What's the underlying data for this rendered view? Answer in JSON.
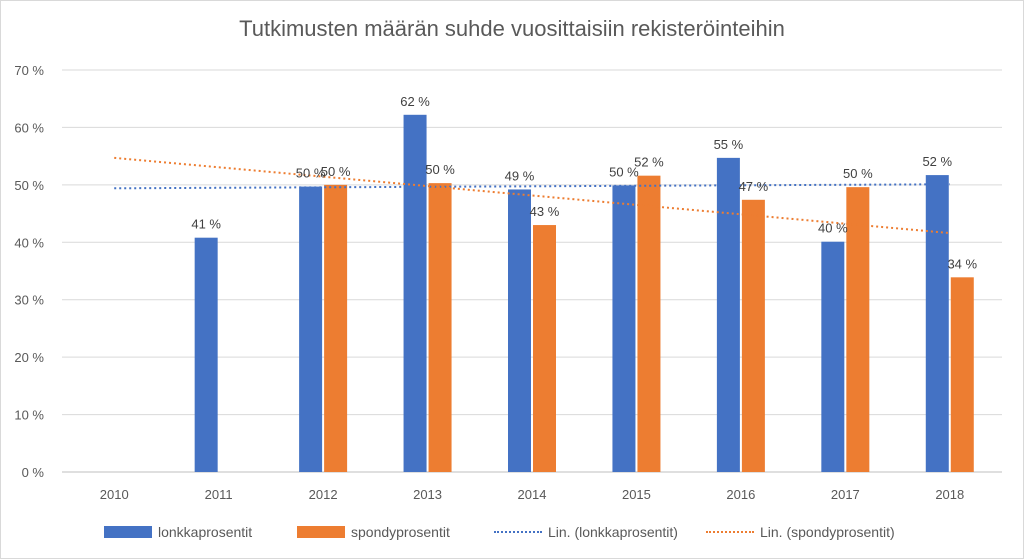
{
  "chart_data": {
    "type": "bar",
    "title": "Tutkimusten määrän suhde vuosittaisiin rekisteröinteihin",
    "categories": [
      "2010",
      "2011",
      "2012",
      "2013",
      "2014",
      "2015",
      "2016",
      "2017",
      "2018"
    ],
    "ylim": [
      0,
      70
    ],
    "y_ticks": [
      "0 %",
      "10 %",
      "20 %",
      "30 %",
      "40 %",
      "50 %",
      "60 %",
      "70 %"
    ],
    "grid": true,
    "legend_position": "bottom",
    "series": [
      {
        "name": "lonkkaprosentit",
        "color": "#4472c4",
        "values": [
          null,
          40.8,
          49.7,
          62.2,
          49.2,
          49.9,
          54.7,
          40.1,
          51.7
        ],
        "labels": [
          "",
          "41 %",
          "50 %",
          "62 %",
          "49 %",
          "50 %",
          "55 %",
          "40 %",
          "52 %"
        ]
      },
      {
        "name": "spondyprosentit",
        "color": "#ed7d31",
        "values": [
          null,
          null,
          50.0,
          50.3,
          43.0,
          51.6,
          47.4,
          49.6,
          33.9
        ],
        "labels": [
          "",
          "",
          "50 %",
          "50 %",
          "43 %",
          "52 %",
          "47 %",
          "50 %",
          "34 %"
        ]
      }
    ],
    "trendlines": [
      {
        "name": "Lin. (lonkkaprosentit)",
        "color": "#4472c4",
        "style": "dotted",
        "start": 49.4,
        "end": 50.1
      },
      {
        "name": "Lin. (spondyprosentit)",
        "color": "#ed7d31",
        "style": "dotted",
        "start": 54.7,
        "end": 41.6
      }
    ]
  }
}
